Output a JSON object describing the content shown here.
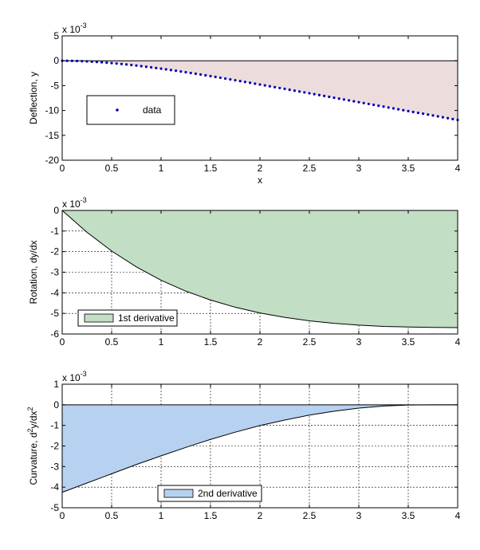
{
  "chart_data": [
    {
      "type": "area",
      "xlabel": "x",
      "ylabel": "Deflection, y",
      "exponent_base": "x 10",
      "exponent_power": "-3",
      "xlim": [
        0,
        4
      ],
      "ylim": [
        -20,
        5
      ],
      "xticks": [
        "0",
        "0.5",
        "1",
        "1.5",
        "2",
        "2.5",
        "3",
        "3.5",
        "4"
      ],
      "yticks": [
        "5",
        "0",
        "-5",
        "-10",
        "-15",
        "-20"
      ],
      "grid": false,
      "legend": {
        "position": "lower-left",
        "entries": [
          {
            "label": "data",
            "marker": "point"
          }
        ]
      },
      "fill_color": "#ecdcdc",
      "marker_color": "#0000b4",
      "series": [
        {
          "name": "data",
          "x": [
            0,
            0.05,
            0.1,
            0.15,
            0.2,
            0.25,
            0.3,
            0.35,
            0.4,
            0.45,
            0.5,
            0.55,
            0.6,
            0.65,
            0.7,
            0.75,
            0.8,
            0.85,
            0.9,
            0.95,
            1.0,
            1.05,
            1.1,
            1.15,
            1.2,
            1.25,
            1.3,
            1.35,
            1.4,
            1.45,
            1.5,
            1.55,
            1.6,
            1.65,
            1.7,
            1.75,
            1.8,
            1.85,
            1.9,
            1.95,
            2.0,
            2.05,
            2.1,
            2.15,
            2.2,
            2.25,
            2.3,
            2.35,
            2.4,
            2.45,
            2.5,
            2.55,
            2.6,
            2.65,
            2.7,
            2.75,
            2.8,
            2.85,
            2.9,
            2.95,
            3.0,
            3.05,
            3.1,
            3.15,
            3.2,
            3.25,
            3.3,
            3.35,
            3.4,
            3.45,
            3.5,
            3.55,
            3.6,
            3.65,
            3.7,
            3.75,
            3.8,
            3.85,
            3.9,
            3.95,
            4.0
          ],
          "y": [
            0,
            -0.0054,
            -0.0213,
            -0.0472,
            -0.0827,
            -0.127,
            -0.18,
            -0.241,
            -0.31,
            -0.386,
            -0.469,
            -0.558,
            -0.653,
            -0.754,
            -0.86,
            -0.972,
            -1.088,
            -1.209,
            -1.334,
            -1.463,
            -1.596,
            -1.733,
            -1.873,
            -2.016,
            -2.163,
            -2.312,
            -2.464,
            -2.618,
            -2.775,
            -2.934,
            -3.094,
            -3.257,
            -3.421,
            -3.587,
            -3.755,
            -3.923,
            -4.093,
            -4.264,
            -4.436,
            -4.609,
            -4.782,
            -4.957,
            -5.131,
            -5.307,
            -5.483,
            -5.659,
            -5.836,
            -6.013,
            -6.19,
            -6.368,
            -6.546,
            -6.724,
            -6.902,
            -7.08,
            -7.259,
            -7.437,
            -7.616,
            -7.794,
            -7.973,
            -8.152,
            -8.33,
            -8.509,
            -8.688,
            -8.867,
            -9.046,
            -9.224,
            -9.403,
            -9.582,
            -9.761,
            -9.94,
            -10.12,
            -10.3,
            -10.48,
            -10.65,
            -10.83,
            -11.01,
            -11.19,
            -11.37,
            -11.55,
            -11.73,
            -11.91
          ]
        }
      ]
    },
    {
      "type": "area",
      "xlabel": "",
      "ylabel": "Rotation, dy/dx",
      "exponent_base": "x 10",
      "exponent_power": "-3",
      "xlim": [
        0,
        4
      ],
      "ylim": [
        -6,
        0
      ],
      "xticks": [
        "0",
        "0.5",
        "1",
        "1.5",
        "2",
        "2.5",
        "3",
        "3.5",
        "4"
      ],
      "yticks": [
        "0",
        "-1",
        "-2",
        "-3",
        "-4",
        "-5",
        "-6"
      ],
      "grid": true,
      "legend": {
        "position": "lower-left",
        "entries": [
          {
            "label": "1st derivative",
            "marker": "patch"
          }
        ]
      },
      "fill_color": "#c2dec4",
      "series": [
        {
          "name": "1st derivative",
          "x": [
            0,
            0.25,
            0.5,
            0.75,
            1.0,
            1.25,
            1.5,
            1.75,
            2.0,
            2.25,
            2.5,
            2.75,
            3.0,
            3.25,
            3.5,
            3.75,
            4.0
          ],
          "y": [
            0,
            -1.06,
            -1.97,
            -2.74,
            -3.39,
            -3.92,
            -4.35,
            -4.7,
            -4.98,
            -5.19,
            -5.36,
            -5.48,
            -5.57,
            -5.63,
            -5.66,
            -5.68,
            -5.69
          ]
        }
      ]
    },
    {
      "type": "area",
      "xlabel": "",
      "ylabel_parts": [
        "Curvature, d",
        "2",
        "y/dx",
        "2"
      ],
      "exponent_base": "x 10",
      "exponent_power": "-3",
      "xlim": [
        0,
        4
      ],
      "ylim": [
        -5,
        1
      ],
      "xticks": [
        "0",
        "0.5",
        "1",
        "1.5",
        "2",
        "2.5",
        "3",
        "3.5",
        "4"
      ],
      "yticks": [
        "1",
        "0",
        "-1",
        "-2",
        "-3",
        "-4",
        "-5"
      ],
      "grid": true,
      "legend": {
        "position": "lower-center",
        "entries": [
          {
            "label": "2nd derivative",
            "marker": "patch"
          }
        ]
      },
      "fill_color": "#b7d1f0",
      "series": [
        {
          "name": "2nd derivative",
          "x": [
            0,
            0.25,
            0.5,
            0.75,
            1.0,
            1.25,
            1.5,
            1.75,
            2.0,
            2.25,
            2.5,
            2.75,
            3.0,
            3.25,
            3.5,
            3.75,
            4.0
          ],
          "y": [
            -4.25,
            -3.8,
            -3.35,
            -2.9,
            -2.48,
            -2.07,
            -1.68,
            -1.33,
            -1.01,
            -0.74,
            -0.5,
            -0.31,
            -0.16,
            -0.06,
            -0.01,
            0.0,
            0.0
          ]
        }
      ]
    }
  ]
}
